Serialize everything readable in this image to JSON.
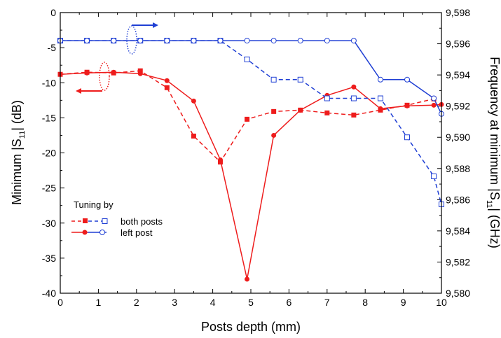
{
  "chart_data": {
    "type": "line",
    "xlabel": "Posts depth (mm)",
    "ylabel_left": {
      "pre": "Minimum |S",
      "sub": "11",
      "post": "| (dB)"
    },
    "ylabel_right": {
      "pre": "Frequency at minimum |S",
      "sub": "11",
      "post": "| (GHz)"
    },
    "xlim": [
      0,
      10
    ],
    "ylim_left": [
      -40,
      0
    ],
    "ylim_right": [
      9.58,
      9.598
    ],
    "x_ticks": [
      "0",
      "1",
      "2",
      "3",
      "4",
      "5",
      "6",
      "7",
      "8",
      "9",
      "10"
    ],
    "y_left_ticks": [
      "0",
      "-5",
      "-10",
      "-15",
      "-20",
      "-25",
      "-30",
      "-35",
      "-40"
    ],
    "y_right_ticks": [
      "9,598",
      "9,596",
      "9,594",
      "9,592",
      "9,590",
      "9,588",
      "9,586",
      "9,584",
      "9,582",
      "9,580"
    ],
    "legend": {
      "title": "Tuning by",
      "placement": "bottom-left",
      "entries": [
        "both posts",
        "left post"
      ]
    },
    "colors": {
      "s11": "#ee1c1c",
      "freq": "#1f3fd4"
    },
    "series": [
      {
        "name": "both posts",
        "axis": "left",
        "style": "dashed",
        "marker": "square-filled",
        "x": [
          0,
          0.7,
          1.4,
          2.1,
          2.8,
          3.5,
          4.2,
          4.9,
          5.6,
          6.3,
          7.0,
          7.7,
          8.4,
          9.1,
          9.8
        ],
        "y": [
          -8.8,
          -8.5,
          -8.6,
          -8.3,
          -10.7,
          -17.6,
          -21.3,
          -15.2,
          -14.1,
          -13.9,
          -14.3,
          -14.6,
          -13.9,
          -13.2,
          -12.3
        ]
      },
      {
        "name": "left post",
        "axis": "left",
        "style": "solid",
        "marker": "circle-filled",
        "x": [
          0,
          0.7,
          1.4,
          2.1,
          2.8,
          3.5,
          4.2,
          4.9,
          5.6,
          6.3,
          7.0,
          7.7,
          8.4,
          9.1,
          9.8,
          10.0
        ],
        "y": [
          -8.8,
          -8.6,
          -8.5,
          -8.7,
          -9.7,
          -12.6,
          -21.0,
          -38.0,
          -17.5,
          -13.9,
          -11.8,
          -10.6,
          -13.7,
          -13.3,
          -13.2,
          -13.1
        ]
      },
      {
        "name": "both posts",
        "axis": "right",
        "style": "dashed",
        "marker": "square-open",
        "x": [
          0,
          0.7,
          1.4,
          2.1,
          2.8,
          3.5,
          4.2,
          4.9,
          5.6,
          6.3,
          7.0,
          7.7,
          8.4,
          9.1,
          9.8,
          10.0
        ],
        "y": [
          9.5962,
          9.5962,
          9.5962,
          9.5962,
          9.5962,
          9.5962,
          9.5962,
          9.595,
          9.5937,
          9.5937,
          9.5925,
          9.5925,
          9.5925,
          9.59,
          9.5875,
          9.5857
        ]
      },
      {
        "name": "left post",
        "axis": "right",
        "style": "solid",
        "marker": "circle-open",
        "x": [
          0,
          0.7,
          1.4,
          2.1,
          2.8,
          3.5,
          4.2,
          4.9,
          5.6,
          6.3,
          7.0,
          7.7,
          8.4,
          9.1,
          9.8,
          10.0
        ],
        "y": [
          9.5962,
          9.5962,
          9.5962,
          9.5962,
          9.5962,
          9.5962,
          9.5962,
          9.5962,
          9.5962,
          9.5962,
          9.5962,
          9.5962,
          9.5937,
          9.5937,
          9.5925,
          9.5915
        ]
      }
    ]
  }
}
